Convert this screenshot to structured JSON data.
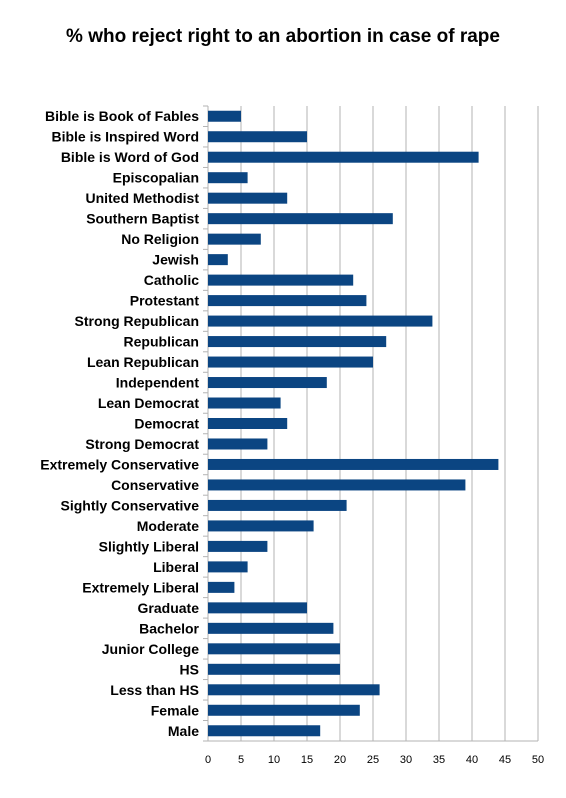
{
  "chart_data": {
    "type": "bar",
    "orientation": "horizontal",
    "title": "% who reject right to an abortion in case of rape",
    "xlabel": "",
    "ylabel": "",
    "xlim": [
      0,
      50
    ],
    "x_ticks": [
      0,
      5,
      10,
      15,
      20,
      25,
      30,
      35,
      40,
      45,
      50
    ],
    "grid": "vertical",
    "legend": "none",
    "bar_color": "#0b4582",
    "categories": [
      "Bible is Book of Fables",
      "Bible is Inspired Word",
      "Bible is Word of God",
      "Episcopalian",
      "United Methodist",
      "Southern Baptist",
      "No Religion",
      "Jewish",
      "Catholic",
      "Protestant",
      "Strong Republican",
      "Republican",
      "Lean Republican",
      "Independent",
      "Lean Democrat",
      "Democrat",
      "Strong Democrat",
      "Extremely Conservative",
      "Conservative",
      "Sightly Conservative",
      "Moderate",
      "Slightly Liberal",
      "Liberal",
      "Extremely Liberal",
      "Graduate",
      "Bachelor",
      "Junior College",
      "HS",
      "Less than HS",
      "Female",
      "Male"
    ],
    "values": [
      5,
      15,
      41,
      6,
      12,
      28,
      8,
      3,
      22,
      24,
      34,
      27,
      25,
      18,
      11,
      12,
      9,
      44,
      39,
      21,
      16,
      9,
      6,
      4,
      15,
      19,
      20,
      20,
      26,
      23,
      17
    ]
  }
}
